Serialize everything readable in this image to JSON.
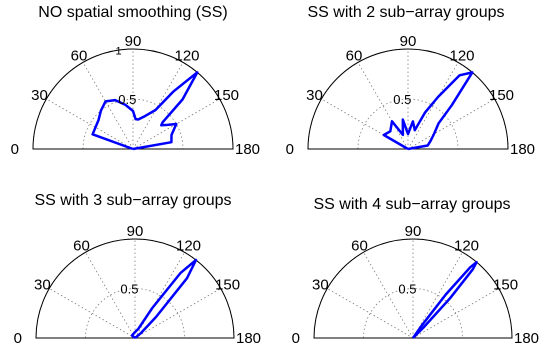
{
  "chart_data": [
    {
      "type": "polar",
      "title": "NO spatial smoothing (SS)",
      "theta_ticks": [
        "0",
        "30",
        "60",
        "90",
        "120",
        "150",
        "180"
      ],
      "r_ticks": [
        "0.5",
        "1"
      ],
      "rlim": [
        0,
        1
      ],
      "theta_range_deg": [
        0,
        180
      ],
      "grid": true,
      "series": [
        {
          "color": "#0000ff",
          "theta_deg": [
            0,
            20,
            40,
            50,
            60,
            70,
            80,
            90,
            95,
            100,
            110,
            120,
            125,
            130,
            135,
            138,
            140,
            145,
            150,
            160,
            170,
            180
          ],
          "r": [
            0,
            0.43,
            0.45,
            0.5,
            0.55,
            0.52,
            0.45,
            0.38,
            0.3,
            0.3,
            0.35,
            0.45,
            0.7,
            1.0,
            0.7,
            0.4,
            0.37,
            0.42,
            0.5,
            0.41,
            0.39,
            0
          ]
        }
      ]
    },
    {
      "type": "polar",
      "title": "SS with 2 sub−array groups",
      "theta_ticks": [
        "0",
        "30",
        "60",
        "90",
        "120",
        "150",
        "180"
      ],
      "r_ticks": [
        "0.5"
      ],
      "rlim": [
        0,
        1
      ],
      "theta_range_deg": [
        0,
        180
      ],
      "grid": true,
      "series": [
        {
          "color": "#0000ff",
          "theta_deg": [
            0,
            30,
            45,
            60,
            70,
            80,
            90,
            100,
            110,
            115,
            120,
            125,
            130,
            135,
            140,
            150,
            160,
            170,
            180
          ],
          "r": [
            0,
            0.28,
            0.25,
            0.32,
            0.15,
            0.3,
            0.15,
            0.28,
            0.2,
            0.4,
            0.6,
            0.9,
            1.0,
            0.62,
            0.4,
            0.3,
            0.24,
            0.2,
            0
          ]
        }
      ]
    },
    {
      "type": "polar",
      "title": "SS with 3 sub−array groups",
      "theta_ticks": [
        "0",
        "30",
        "60",
        "90",
        "120",
        "150",
        "180"
      ],
      "r_ticks": [
        "0.5"
      ],
      "rlim": [
        0,
        1
      ],
      "theta_range_deg": [
        0,
        180
      ],
      "grid": true,
      "series": [
        {
          "color": "#0000ff",
          "theta_deg": [
            0,
            40,
            90,
            110,
            120,
            125,
            128,
            131,
            135,
            140,
            180
          ],
          "r": [
            0,
            0.04,
            0.06,
            0.1,
            0.35,
            0.8,
            1.0,
            0.8,
            0.3,
            0.08,
            0
          ]
        }
      ]
    },
    {
      "type": "polar",
      "title": "SS with 4 sub−array groups",
      "theta_ticks": [
        "0",
        "30",
        "60",
        "90",
        "120",
        "150",
        "180"
      ],
      "r_ticks": [
        "0.5"
      ],
      "rlim": [
        0,
        1
      ],
      "theta_range_deg": [
        0,
        180
      ],
      "grid": true,
      "series": [
        {
          "color": "#0000ff",
          "theta_deg": [
            0,
            120,
            125,
            127,
            129,
            130,
            131,
            133,
            135,
            140,
            180
          ],
          "r": [
            0,
            0.0,
            0.15,
            0.55,
            0.92,
            1.0,
            0.92,
            0.55,
            0.15,
            0.0,
            0
          ]
        }
      ]
    }
  ]
}
